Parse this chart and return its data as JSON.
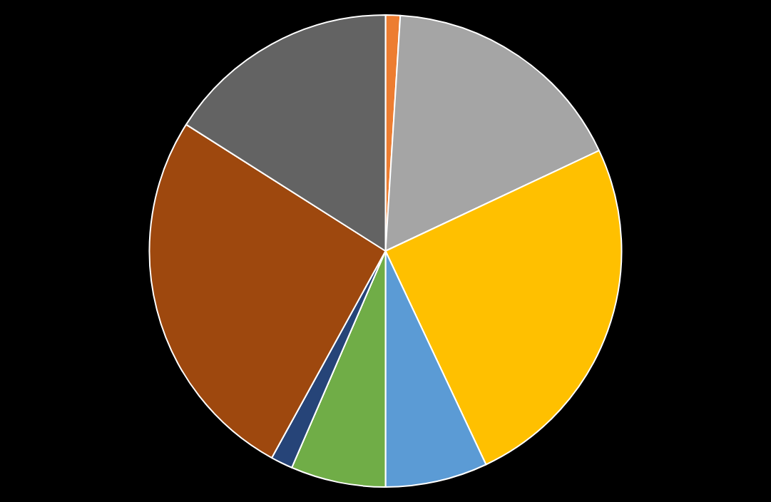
{
  "chart_data": {
    "type": "pie",
    "categories": [
      null,
      null,
      null,
      null,
      null,
      null,
      null,
      null
    ],
    "values": [
      1,
      17,
      25,
      7,
      6.5,
      1.5,
      26,
      16
    ],
    "colors": [
      "#ed7d31",
      "#a5a5a5",
      "#ffc000",
      "#5b9bd5",
      "#70ad47",
      "#264478",
      "#9e480e",
      "#636363"
    ]
  }
}
